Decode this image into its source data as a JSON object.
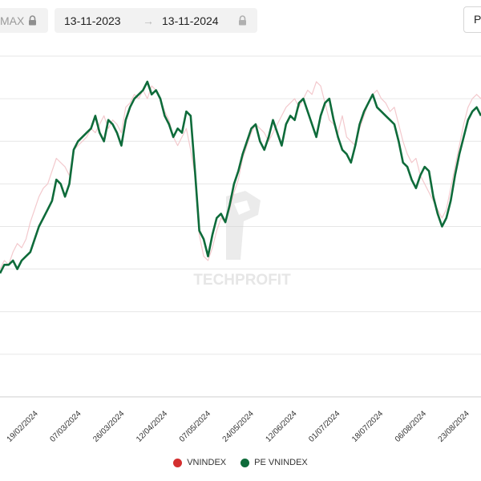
{
  "toolbar": {
    "range_label": "MAX",
    "date_from": "13-11-2023",
    "date_arrow": "→",
    "date_to": "13-11-2024",
    "right_button_label": "P",
    "lock_icon": "lock-icon"
  },
  "watermark": {
    "text": "TECHPROFIT"
  },
  "colors": {
    "pe_line": "#0e6b3a",
    "vnindex_line": "#f3c9cd",
    "vnindex_dot": "#d32f2f",
    "pe_dot": "#0e6b3a",
    "grid": "#e6e6e6"
  },
  "chart_data": {
    "type": "line",
    "title": "",
    "xlabel": "",
    "ylabel": "",
    "grid": true,
    "legend_position": "bottom-center",
    "x_ticks": [
      "19/02/2024",
      "07/03/2024",
      "26/03/2024",
      "12/04/2024",
      "07/05/2024",
      "24/05/2024",
      "12/06/2024",
      "01/07/2024",
      "18/07/2024",
      "06/08/2024",
      "23/08/2024"
    ],
    "y_range": [
      0,
      8
    ],
    "series": [
      {
        "name": "VNINDEX",
        "color": "#f3c9cd",
        "values": [
          3.0,
          3.2,
          3.1,
          3.4,
          3.6,
          3.5,
          3.7,
          4.1,
          4.4,
          4.7,
          4.9,
          5.0,
          5.3,
          5.6,
          5.5,
          5.4,
          5.2,
          5.8,
          5.9,
          6.0,
          6.1,
          6.3,
          6.2,
          6.4,
          6.6,
          6.3,
          6.5,
          6.4,
          6.2,
          6.8,
          6.9,
          7.1,
          7.0,
          7.2,
          7.0,
          7.3,
          7.2,
          7.0,
          6.7,
          6.5,
          6.1,
          5.9,
          6.1,
          6.3,
          5.8,
          5.2,
          3.8,
          3.3,
          3.2,
          3.5,
          3.9,
          4.2,
          4.1,
          4.4,
          4.8,
          5.1,
          5.6,
          5.9,
          6.2,
          6.4,
          6.3,
          6.2,
          6.0,
          6.2,
          6.4,
          6.6,
          6.8,
          6.9,
          7.0,
          6.8,
          7.0,
          7.2,
          7.1,
          7.4,
          7.3,
          6.9,
          6.5,
          6.4,
          6.2,
          6.6,
          6.1,
          6.0,
          5.9,
          6.3,
          6.6,
          6.9,
          7.1,
          7.2,
          7.0,
          6.9,
          6.7,
          6.8,
          6.4,
          6.0,
          5.7,
          5.5,
          5.6,
          5.2,
          5.0,
          4.8,
          4.6,
          4.4,
          4.2,
          4.4,
          4.9,
          5.4,
          5.9,
          6.4,
          6.8,
          7.0,
          7.1,
          7.0
        ]
      },
      {
        "name": "PE VNINDEX",
        "color": "#0e6b3a",
        "values": [
          2.9,
          3.1,
          3.1,
          3.2,
          3.0,
          3.2,
          3.3,
          3.4,
          3.7,
          4.0,
          4.2,
          4.4,
          4.6,
          5.1,
          5.0,
          4.7,
          5.0,
          5.8,
          6.0,
          6.1,
          6.2,
          6.3,
          6.6,
          6.2,
          6.0,
          6.5,
          6.4,
          6.2,
          5.9,
          6.5,
          6.8,
          7.0,
          7.1,
          7.2,
          7.4,
          7.1,
          7.2,
          7.0,
          6.6,
          6.4,
          6.1,
          6.3,
          6.2,
          6.7,
          6.6,
          5.3,
          3.9,
          3.7,
          3.3,
          3.8,
          4.2,
          4.3,
          4.1,
          4.5,
          5.0,
          5.3,
          5.7,
          6.0,
          6.3,
          6.4,
          6.0,
          5.8,
          6.1,
          6.5,
          6.2,
          5.9,
          6.4,
          6.6,
          6.5,
          6.9,
          7.0,
          6.7,
          6.4,
          6.1,
          6.6,
          6.9,
          7.0,
          6.5,
          6.1,
          5.8,
          5.7,
          5.5,
          5.9,
          6.4,
          6.7,
          6.9,
          7.1,
          6.8,
          6.7,
          6.6,
          6.5,
          6.4,
          6.0,
          5.5,
          5.4,
          5.1,
          4.9,
          5.2,
          5.4,
          5.3,
          4.7,
          4.3,
          4.0,
          4.2,
          4.6,
          5.2,
          5.7,
          6.1,
          6.5,
          6.7,
          6.8,
          6.6
        ]
      }
    ]
  }
}
